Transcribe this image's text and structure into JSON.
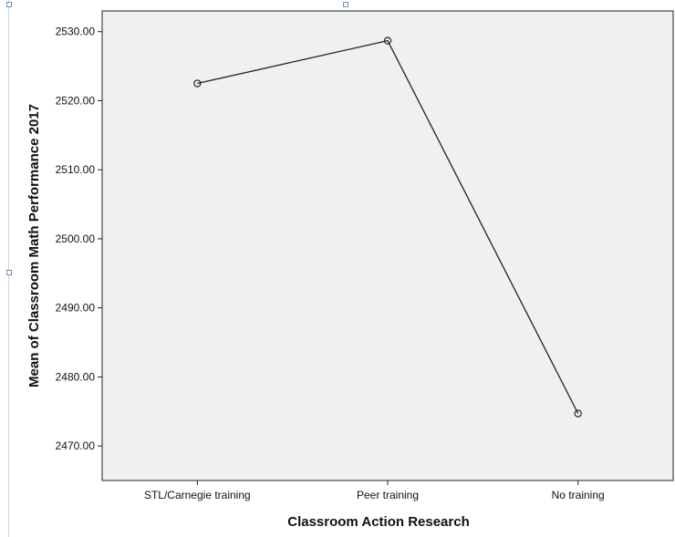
{
  "chart_data": {
    "type": "line",
    "title": "",
    "xlabel": "Classroom Action Research",
    "ylabel": "Mean of Classroom Math Performance 2017",
    "categories": [
      "STL/Carnegie training",
      "Peer training",
      "No training"
    ],
    "series": [
      {
        "values": [
          2522.5,
          2528.7,
          2474.7
        ]
      }
    ],
    "ylim": [
      2465,
      2533
    ],
    "yticks": [
      2470,
      2480,
      2490,
      2500,
      2510,
      2520,
      2530
    ],
    "ytick_labels": [
      "2470.00",
      "2480.00",
      "2490.00",
      "2500.00",
      "2510.00",
      "2520.00",
      "2530.00"
    ],
    "grid": false,
    "legend": "none",
    "colors": {
      "plot_background": "#f0f0f0",
      "line": "#222222",
      "marker": "#222222",
      "axis": "#222222"
    }
  }
}
